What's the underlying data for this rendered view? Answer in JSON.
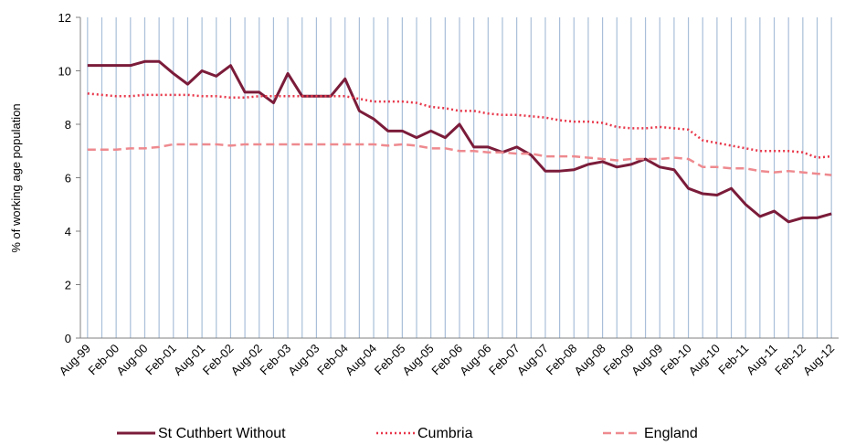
{
  "chart_data": {
    "type": "line",
    "ylabel": "% of working age population",
    "categories": [
      "Aug-99",
      null,
      "Feb-00",
      null,
      "Aug-00",
      null,
      "Feb-01",
      null,
      "Aug-01",
      null,
      "Feb-02",
      null,
      "Aug-02",
      null,
      "Feb-03",
      null,
      "Aug-03",
      null,
      "Feb-04",
      null,
      "Aug-04",
      null,
      "Feb-05",
      null,
      "Aug-05",
      null,
      "Feb-06",
      null,
      "Aug-06",
      null,
      "Feb-07",
      null,
      "Aug-07",
      null,
      "Feb-08",
      null,
      "Aug-08",
      null,
      "Feb-09",
      null,
      "Aug-09",
      null,
      "Feb-10",
      null,
      "Aug-10",
      null,
      "Feb-11",
      null,
      "Aug-11",
      null,
      "Feb-12",
      null,
      "Aug-12"
    ],
    "series": [
      {
        "name": "St Cuthbert Without",
        "color": "#7b1c3a",
        "dash": "solid",
        "values": [
          10.2,
          10.2,
          10.2,
          10.2,
          10.35,
          10.35,
          9.9,
          9.5,
          10.0,
          9.8,
          10.2,
          9.2,
          9.2,
          8.8,
          9.9,
          9.05,
          9.05,
          9.05,
          9.7,
          8.5,
          8.2,
          7.75,
          7.75,
          7.5,
          7.75,
          7.5,
          8.0,
          7.15,
          7.15,
          6.95,
          7.15,
          6.85,
          6.25,
          6.25,
          6.3,
          6.5,
          6.6,
          6.4,
          6.5,
          6.7,
          6.4,
          6.3,
          5.6,
          5.4,
          5.35,
          5.6,
          5.0,
          4.55,
          4.75,
          4.35,
          4.5,
          4.5,
          4.65
        ]
      },
      {
        "name": "Cumbria",
        "color": "#e8374a",
        "dash": "dotted",
        "values": [
          9.15,
          9.1,
          9.05,
          9.05,
          9.1,
          9.1,
          9.1,
          9.1,
          9.05,
          9.05,
          9.0,
          9.0,
          9.05,
          9.05,
          9.05,
          9.05,
          9.05,
          9.05,
          9.05,
          8.95,
          8.85,
          8.85,
          8.85,
          8.8,
          8.65,
          8.6,
          8.5,
          8.5,
          8.4,
          8.35,
          8.35,
          8.3,
          8.25,
          8.15,
          8.1,
          8.1,
          8.05,
          7.9,
          7.85,
          7.85,
          7.9,
          7.85,
          7.8,
          7.4,
          7.3,
          7.2,
          7.1,
          7.0,
          7.0,
          7.0,
          6.95,
          6.75,
          6.8
        ]
      },
      {
        "name": "England",
        "color": "#ee8a8f",
        "dash": "dashed",
        "values": [
          7.05,
          7.05,
          7.05,
          7.1,
          7.1,
          7.15,
          7.25,
          7.25,
          7.25,
          7.25,
          7.2,
          7.25,
          7.25,
          7.25,
          7.25,
          7.25,
          7.25,
          7.25,
          7.25,
          7.25,
          7.25,
          7.2,
          7.25,
          7.2,
          7.1,
          7.1,
          7.0,
          7.0,
          6.95,
          6.95,
          6.9,
          6.9,
          6.8,
          6.8,
          6.8,
          6.75,
          6.7,
          6.65,
          6.7,
          6.7,
          6.7,
          6.75,
          6.7,
          6.4,
          6.4,
          6.35,
          6.35,
          6.25,
          6.2,
          6.25,
          6.2,
          6.15,
          6.1
        ]
      }
    ],
    "ylim": [
      0,
      12
    ],
    "yticks": [
      0,
      2,
      4,
      6,
      8,
      10,
      12
    ],
    "grid": "x"
  }
}
